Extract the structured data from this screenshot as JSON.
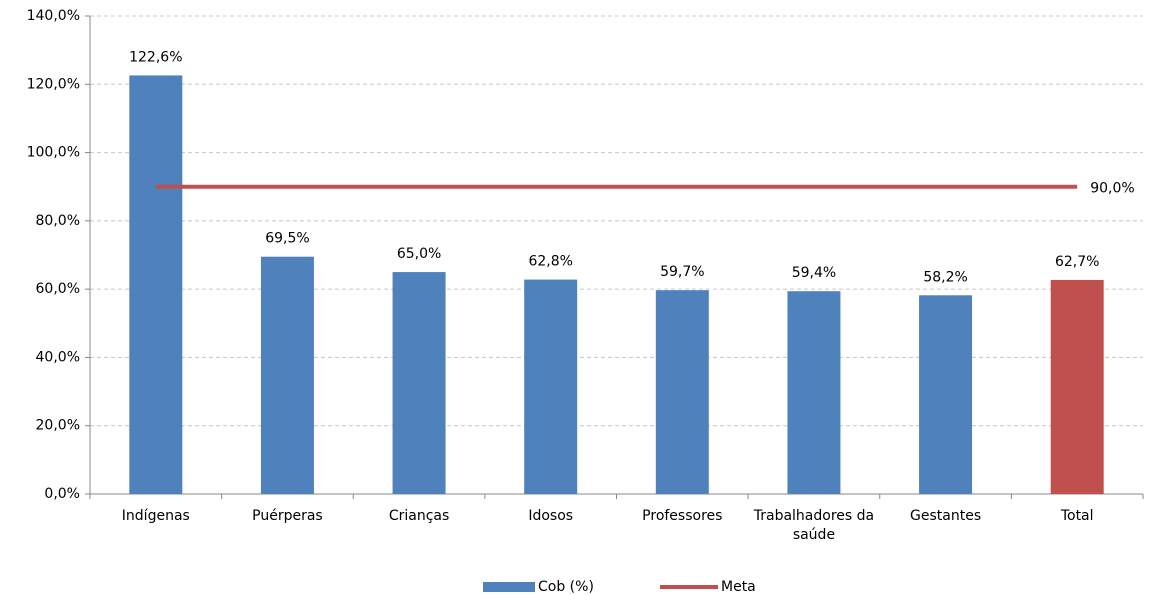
{
  "chart_data": {
    "type": "bar",
    "categories": [
      "Indígenas",
      "Puérperas",
      "Crianças",
      "Idosos",
      "Professores",
      "Trabalhadores da saúde",
      "Gestantes",
      "Total"
    ],
    "series": [
      {
        "name": "Cob (%)",
        "type": "bar",
        "color": "#4f81bd",
        "colors": [
          "#4f81bd",
          "#4f81bd",
          "#4f81bd",
          "#4f81bd",
          "#4f81bd",
          "#4f81bd",
          "#4f81bd",
          "#c0504d"
        ],
        "values": [
          122.6,
          69.5,
          65.0,
          62.8,
          59.7,
          59.4,
          58.2,
          62.7
        ],
        "value_labels": [
          "122,6%",
          "69,5%",
          "65,0%",
          "62,8%",
          "59,7%",
          "59,4%",
          "58,2%",
          "62,7%"
        ]
      },
      {
        "name": "Meta",
        "type": "line",
        "color": "#c0504d",
        "values": [
          90,
          90,
          90,
          90,
          90,
          90,
          90,
          90
        ],
        "value_labels": [
          null,
          null,
          null,
          null,
          null,
          null,
          null,
          "90,0%"
        ]
      }
    ],
    "ylim": [
      0,
      140
    ],
    "yticks": [
      {
        "value": 0,
        "label": "0,0%"
      },
      {
        "value": 20,
        "label": "20,0%"
      },
      {
        "value": 40,
        "label": "40,0%"
      },
      {
        "value": 60,
        "label": "60,0%"
      },
      {
        "value": 80,
        "label": "80,0%"
      },
      {
        "value": 100,
        "label": "100,0%"
      },
      {
        "value": 120,
        "label": "120,0%"
      },
      {
        "value": 140,
        "label": "140,0%"
      }
    ],
    "grid": true,
    "legend": "bottom"
  }
}
